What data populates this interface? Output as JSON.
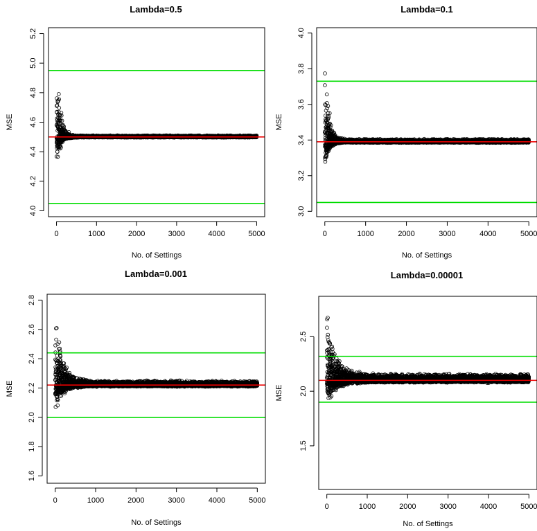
{
  "chart_data": [
    {
      "type": "scatter",
      "title": "Lambda=0.5",
      "xlabel": "No. of Settings",
      "ylabel": "MSE",
      "xlim": [
        -200,
        5200
      ],
      "ylim": [
        3.96,
        5.24
      ],
      "xticks": [
        0,
        1000,
        2000,
        3000,
        4000,
        5000
      ],
      "yticks": [
        4.0,
        4.2,
        4.4,
        4.6,
        4.8,
        5.0,
        5.2
      ],
      "ytick_labels": [
        "4.0",
        "4.2",
        "4.4",
        "4.6",
        "4.8",
        "5.0",
        "5.2"
      ],
      "grid": false,
      "n_points": 5000,
      "converged_value": 4.5,
      "initial_spread": 0.7,
      "spread_floor": 0.012,
      "spread_decay": 90,
      "reference_lines": [
        {
          "name": "upper",
          "y": 4.95,
          "color": "#00dd00"
        },
        {
          "name": "mean",
          "y": 4.5,
          "color": "#ee0000"
        },
        {
          "name": "lower",
          "y": 4.05,
          "color": "#00dd00"
        }
      ]
    },
    {
      "type": "scatter",
      "title": "Lambda=0.1",
      "xlabel": "No. of Settings",
      "ylabel": "MSE",
      "xlim": [
        -200,
        5200
      ],
      "ylim": [
        2.97,
        4.03
      ],
      "xticks": [
        0,
        1000,
        2000,
        3000,
        4000,
        5000
      ],
      "yticks": [
        3.0,
        3.2,
        3.4,
        3.6,
        3.8,
        4.0
      ],
      "ytick_labels": [
        "3.0",
        "3.2",
        "3.4",
        "3.6",
        "3.8",
        "4.0"
      ],
      "grid": false,
      "n_points": 5000,
      "converged_value": 3.39,
      "initial_spread": 0.62,
      "spread_floor": 0.018,
      "spread_decay": 90,
      "reference_lines": [
        {
          "name": "upper",
          "y": 3.73,
          "color": "#00dd00"
        },
        {
          "name": "mean",
          "y": 3.39,
          "color": "#ee0000"
        },
        {
          "name": "lower",
          "y": 3.05,
          "color": "#00dd00"
        }
      ]
    },
    {
      "type": "scatter",
      "title": "Lambda=0.001",
      "xlabel": "No. of Settings",
      "ylabel": "MSE",
      "xlim": [
        -200,
        5200
      ],
      "ylim": [
        1.55,
        2.84
      ],
      "xticks": [
        0,
        1000,
        2000,
        3000,
        4000,
        5000
      ],
      "yticks": [
        1.6,
        1.8,
        2.0,
        2.2,
        2.4,
        2.6,
        2.8
      ],
      "ytick_labels": [
        "1.6",
        "1.8",
        "2.0",
        "2.2",
        "2.4",
        "2.6",
        "2.8"
      ],
      "grid": false,
      "n_points": 5000,
      "converged_value": 2.22,
      "initial_spread": 0.6,
      "spread_floor": 0.035,
      "spread_decay": 180,
      "reference_lines": [
        {
          "name": "upper",
          "y": 2.44,
          "color": "#00dd00"
        },
        {
          "name": "mean",
          "y": 2.22,
          "color": "#ee0000"
        },
        {
          "name": "lower",
          "y": 2.0,
          "color": "#00dd00"
        }
      ]
    },
    {
      "type": "scatter",
      "title": "Lambda=0.00001",
      "xlabel": "No. of Settings",
      "ylabel": "MSE",
      "xlim": [
        -200,
        5200
      ],
      "ylim": [
        1.1,
        2.87
      ],
      "xticks": [
        0,
        1000,
        2000,
        3000,
        4000,
        5000
      ],
      "yticks": [
        1.5,
        2.0,
        2.5
      ],
      "ytick_labels": [
        "1.5",
        "2.0",
        "2.5"
      ],
      "grid": false,
      "n_points": 5000,
      "converged_value": 2.1,
      "initial_spread": 0.75,
      "spread_floor": 0.07,
      "spread_decay": 200,
      "reference_lines": [
        {
          "name": "upper",
          "y": 2.32,
          "color": "#00dd00"
        },
        {
          "name": "mean",
          "y": 2.1,
          "color": "#ee0000"
        },
        {
          "name": "lower",
          "y": 1.9,
          "color": "#00dd00"
        }
      ]
    }
  ]
}
